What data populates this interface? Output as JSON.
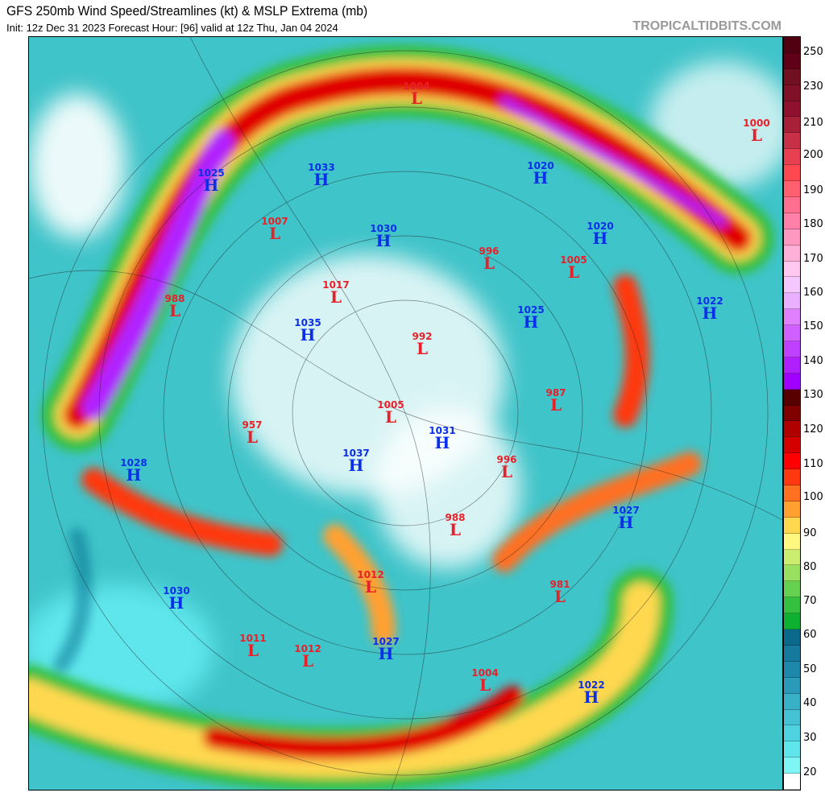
{
  "header": {
    "title": "GFS 250mb Wind Speed/Streamlines (kt) & MSLP Extrema (mb)",
    "subtitle": "Init: 12z Dec 31 2023   Forecast Hour: [96]   valid at 12z Thu, Jan 04 2024",
    "brand": "TROPICALTIDBITS.COM"
  },
  "colorbar": {
    "labels": [
      "250",
      "230",
      "210",
      "200",
      "190",
      "180",
      "170",
      "160",
      "150",
      "140",
      "130",
      "120",
      "110",
      "100",
      "90",
      "80",
      "70",
      "60",
      "50",
      "40",
      "30",
      "20"
    ],
    "colors": [
      "#ffffff",
      "#7ff5f5",
      "#5fe6ec",
      "#4fd3e0",
      "#45c3d4",
      "#38b0c6",
      "#2a9ab8",
      "#1e88aa",
      "#157a9e",
      "#0b6a8c",
      "#0db030",
      "#35c040",
      "#66d050",
      "#9ae060",
      "#ccee70",
      "#fff880",
      "#ffd850",
      "#ffa030",
      "#ff7020",
      "#ff3810",
      "#ff0000",
      "#d40000",
      "#b00000",
      "#800000",
      "#580000",
      "#a000ff",
      "#b020ff",
      "#c040ff",
      "#d060ff",
      "#e080ff",
      "#eab0ff",
      "#f4c8ff",
      "#ffc8f0",
      "#ffb0d8",
      "#ff98c0",
      "#ff80a8",
      "#ff7090",
      "#ff6070",
      "#ff4850",
      "#e84050",
      "#c83048",
      "#a82038",
      "#901030",
      "#801028",
      "#701020",
      "#600018",
      "#500010"
    ]
  },
  "pressure_centers": [
    {
      "type": "L",
      "value": "1004"
    },
    {
      "type": "L",
      "value": "1000"
    },
    {
      "type": "H",
      "value": "1025"
    },
    {
      "type": "H",
      "value": "1033"
    },
    {
      "type": "H",
      "value": "1020"
    },
    {
      "type": "L",
      "value": "1007"
    },
    {
      "type": "H",
      "value": "1030"
    },
    {
      "type": "H",
      "value": "1020"
    },
    {
      "type": "L",
      "value": "996"
    },
    {
      "type": "L",
      "value": "1005"
    },
    {
      "type": "L",
      "value": "1017"
    },
    {
      "type": "L",
      "value": "988"
    },
    {
      "type": "H",
      "value": "1022"
    },
    {
      "type": "H",
      "value": "1035"
    },
    {
      "type": "H",
      "value": "1025"
    },
    {
      "type": "L",
      "value": "992"
    },
    {
      "type": "L",
      "value": "987"
    },
    {
      "type": "L",
      "value": "1005"
    },
    {
      "type": "L",
      "value": "957"
    },
    {
      "type": "H",
      "value": "1031"
    },
    {
      "type": "H",
      "value": "1037"
    },
    {
      "type": "L",
      "value": "996"
    },
    {
      "type": "H",
      "value": "1028"
    },
    {
      "type": "H",
      "value": "1027"
    },
    {
      "type": "L",
      "value": "988"
    },
    {
      "type": "L",
      "value": "1012"
    },
    {
      "type": "L",
      "value": "981"
    },
    {
      "type": "H",
      "value": "1030"
    },
    {
      "type": "L",
      "value": "1011"
    },
    {
      "type": "L",
      "value": "1012"
    },
    {
      "type": "H",
      "value": "1027"
    },
    {
      "type": "L",
      "value": "1004"
    },
    {
      "type": "H",
      "value": "1022"
    }
  ]
}
